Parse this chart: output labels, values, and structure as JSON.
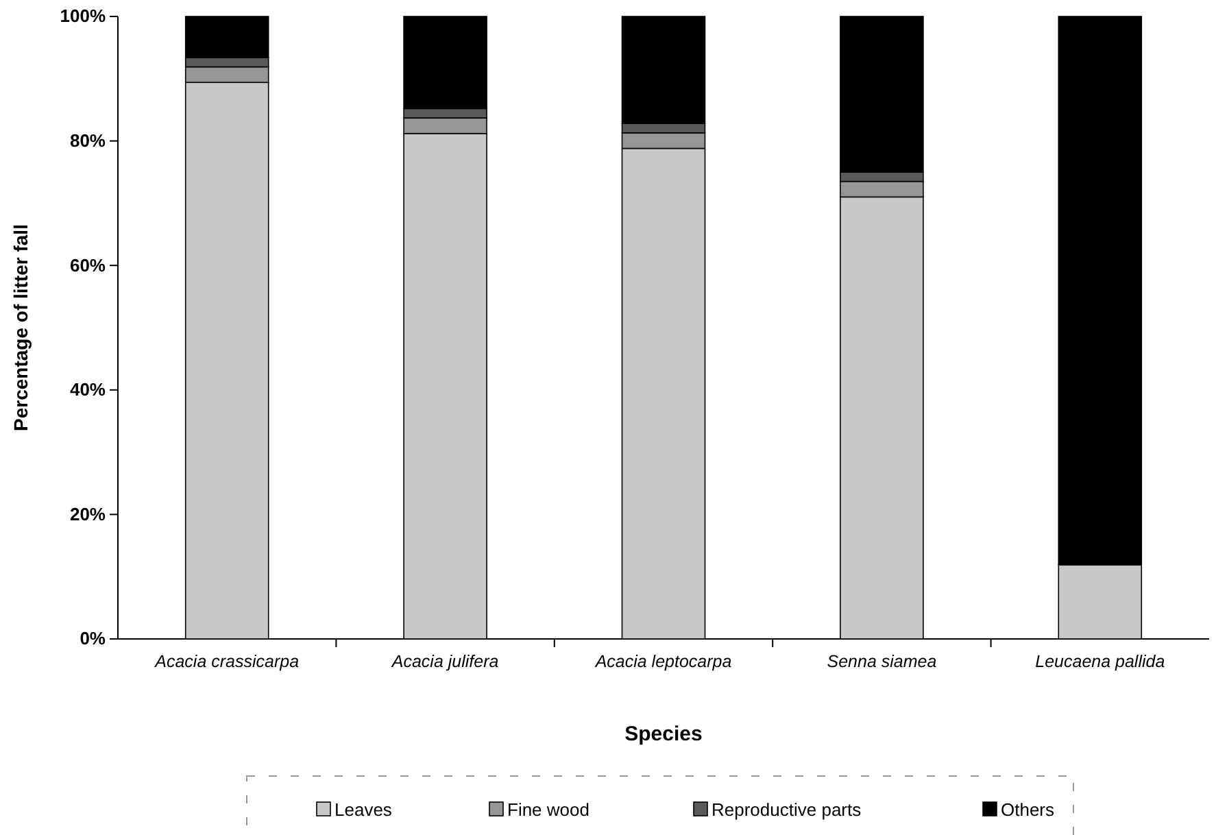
{
  "chart_data": {
    "type": "bar",
    "stacked": true,
    "xlabel": "Species",
    "ylabel": "Percentage of litter fall",
    "categories": [
      "Acacia crassicarpa",
      "Acacia julifera",
      "Acacia leptocarpa",
      "Senna siamea",
      "Leucaena pallida"
    ],
    "series": [
      {
        "name": "Leaves",
        "color": "#c8c8c8",
        "values": [
          89.4,
          81.2,
          78.8,
          71,
          11.9
        ]
      },
      {
        "name": "Fine wood",
        "color": "#969696",
        "values": [
          2.5,
          2.5,
          2.5,
          2.5,
          0
        ]
      },
      {
        "name": "Reproductive parts",
        "color": "#5a5a5a",
        "values": [
          1.5,
          1.5,
          1.5,
          1.5,
          0
        ]
      },
      {
        "name": "Others",
        "color": "#000000",
        "values": [
          6.6,
          14.8,
          17.2,
          25,
          88.1
        ]
      }
    ],
    "ylim": [
      0,
      100
    ],
    "yticks": [
      {
        "value": 0,
        "label": "0%"
      },
      {
        "value": 20,
        "label": "20%"
      },
      {
        "value": 40,
        "label": "40%"
      },
      {
        "value": 60,
        "label": "60%"
      },
      {
        "value": 80,
        "label": "80%"
      },
      {
        "value": 100,
        "label": "100%"
      }
    ],
    "grid": false,
    "legend": "bottom"
  }
}
